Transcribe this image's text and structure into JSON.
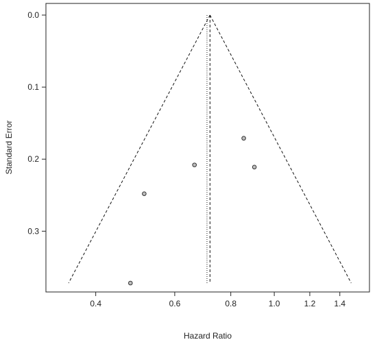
{
  "chart_data": {
    "type": "scatter",
    "title": "",
    "xlabel": "Hazard Ratio",
    "ylabel": "Standard Error",
    "x_scale": "log",
    "y_reversed": true,
    "xlim": [
      0.322,
      1.53
    ],
    "ylim": [
      0.0,
      0.372
    ],
    "x_ticks": [
      {
        "value": 0.4,
        "label": "0.4"
      },
      {
        "value": 0.6,
        "label": "0.6"
      },
      {
        "value": 0.8,
        "label": "0.8"
      },
      {
        "value": 1.0,
        "label": "1.0"
      },
      {
        "value": 1.2,
        "label": "1.2"
      },
      {
        "value": 1.4,
        "label": "1.4"
      }
    ],
    "y_ticks": [
      {
        "value": 0.0,
        "label": "0.0"
      },
      {
        "value": 0.1,
        "label": "0.1"
      },
      {
        "value": 0.2,
        "label": "0.2"
      },
      {
        "value": 0.3,
        "label": "0.3"
      }
    ],
    "points": [
      {
        "x": 0.478,
        "y": 0.372
      },
      {
        "x": 0.513,
        "y": 0.248
      },
      {
        "x": 0.664,
        "y": 0.208
      },
      {
        "x": 0.855,
        "y": 0.171
      },
      {
        "x": 0.903,
        "y": 0.211
      }
    ],
    "pooled_estimate": 0.719,
    "reference_line": 0.708,
    "funnel_limits": {
      "apex_x": 0.719,
      "se_max": 0.372,
      "left_x": 0.348,
      "right_x": 1.484
    },
    "colors": {
      "point_fill": "#bdbdbd",
      "point_stroke": "#333333",
      "line": "#111111"
    }
  }
}
